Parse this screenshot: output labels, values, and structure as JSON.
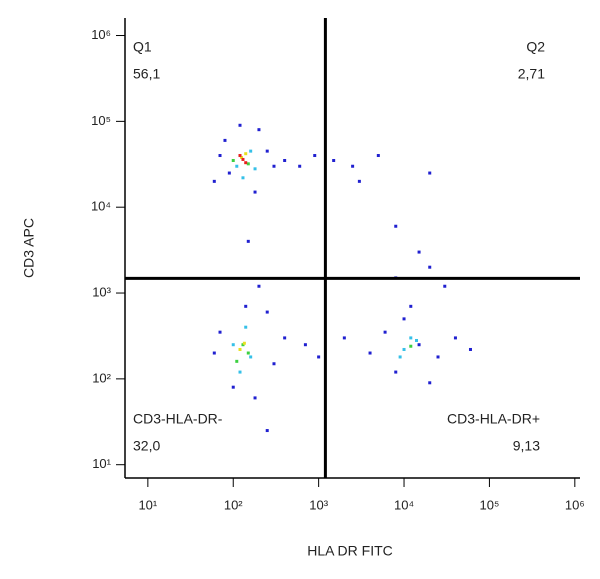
{
  "chart_data": {
    "type": "scatter",
    "x_label": "HLA DR FITC",
    "y_label": "CD3 APC",
    "log_x": true,
    "log_y": true,
    "xlim": [
      5.4,
      1150000
    ],
    "ylim": [
      7,
      1600000
    ],
    "xticks": [
      {
        "value": 10,
        "label": "10¹"
      },
      {
        "value": 100,
        "label": "10²"
      },
      {
        "value": 1000,
        "label": "10³"
      },
      {
        "value": 10000,
        "label": "10⁴"
      },
      {
        "value": 100000,
        "label": "10⁵"
      },
      {
        "value": 1000000,
        "label": "10⁶"
      }
    ],
    "yticks": [
      {
        "value": 10,
        "label": "10¹"
      },
      {
        "value": 100,
        "label": "10²"
      },
      {
        "value": 1000,
        "label": "10³"
      },
      {
        "value": 10000,
        "label": "10⁴"
      },
      {
        "value": 100000,
        "label": "10⁵"
      },
      {
        "value": 1000000,
        "label": "10⁶"
      }
    ],
    "gates": {
      "x": 1200,
      "y": 1480
    },
    "quadrants": {
      "names": [
        "Q1",
        "Q2",
        "CD3-HLA-DR-",
        "CD3-HLA-DR+"
      ],
      "values": [
        56.1,
        2.71,
        32.0,
        9.13
      ],
      "value_labels": [
        "56,1",
        "2,71",
        "32,0",
        "9,13"
      ]
    },
    "series": [
      {
        "color": "#2020d0",
        "x": [
          70,
          90,
          250,
          300,
          200,
          80,
          400,
          600,
          900,
          1500,
          2500,
          5000,
          20000,
          8000,
          15000,
          20000,
          3000,
          180,
          120,
          60,
          150,
          200,
          140,
          60,
          70,
          300,
          400,
          250,
          100,
          180,
          700,
          1000,
          2000,
          4000,
          6000,
          8000,
          15000,
          25000,
          40000,
          60000,
          10000,
          20000,
          12000,
          30000,
          8000,
          250
        ],
        "y": [
          40000,
          25000,
          45000,
          30000,
          80000,
          60000,
          35000,
          30000,
          40000,
          35000,
          30000,
          40000,
          25000,
          6000,
          3000,
          2000,
          20000,
          15000,
          90000,
          20000,
          4000,
          1200,
          700,
          200,
          350,
          150,
          300,
          600,
          80,
          60,
          250,
          180,
          300,
          200,
          350,
          120,
          250,
          180,
          300,
          220,
          500,
          90,
          700,
          1200,
          1500,
          25
        ]
      },
      {
        "color": "#35c0e8",
        "x": [
          110,
          160,
          130,
          180,
          100,
          160,
          140,
          120,
          10000,
          14000,
          9000,
          12000
        ],
        "y": [
          30000,
          45000,
          22000,
          28000,
          250,
          180,
          400,
          120,
          220,
          280,
          180,
          300
        ]
      },
      {
        "color": "#3cd040",
        "x": [
          120,
          150,
          100,
          130,
          150,
          110,
          12000
        ],
        "y": [
          40000,
          32000,
          35000,
          250,
          200,
          160,
          240
        ]
      },
      {
        "color": "#e8e020",
        "x": [
          125,
          140,
          120,
          135
        ],
        "y": [
          38000,
          42000,
          220,
          260
        ]
      },
      {
        "color": "#e82020",
        "x": [
          130,
          120,
          140
        ],
        "y": [
          36000,
          40000,
          33000
        ]
      }
    ]
  }
}
